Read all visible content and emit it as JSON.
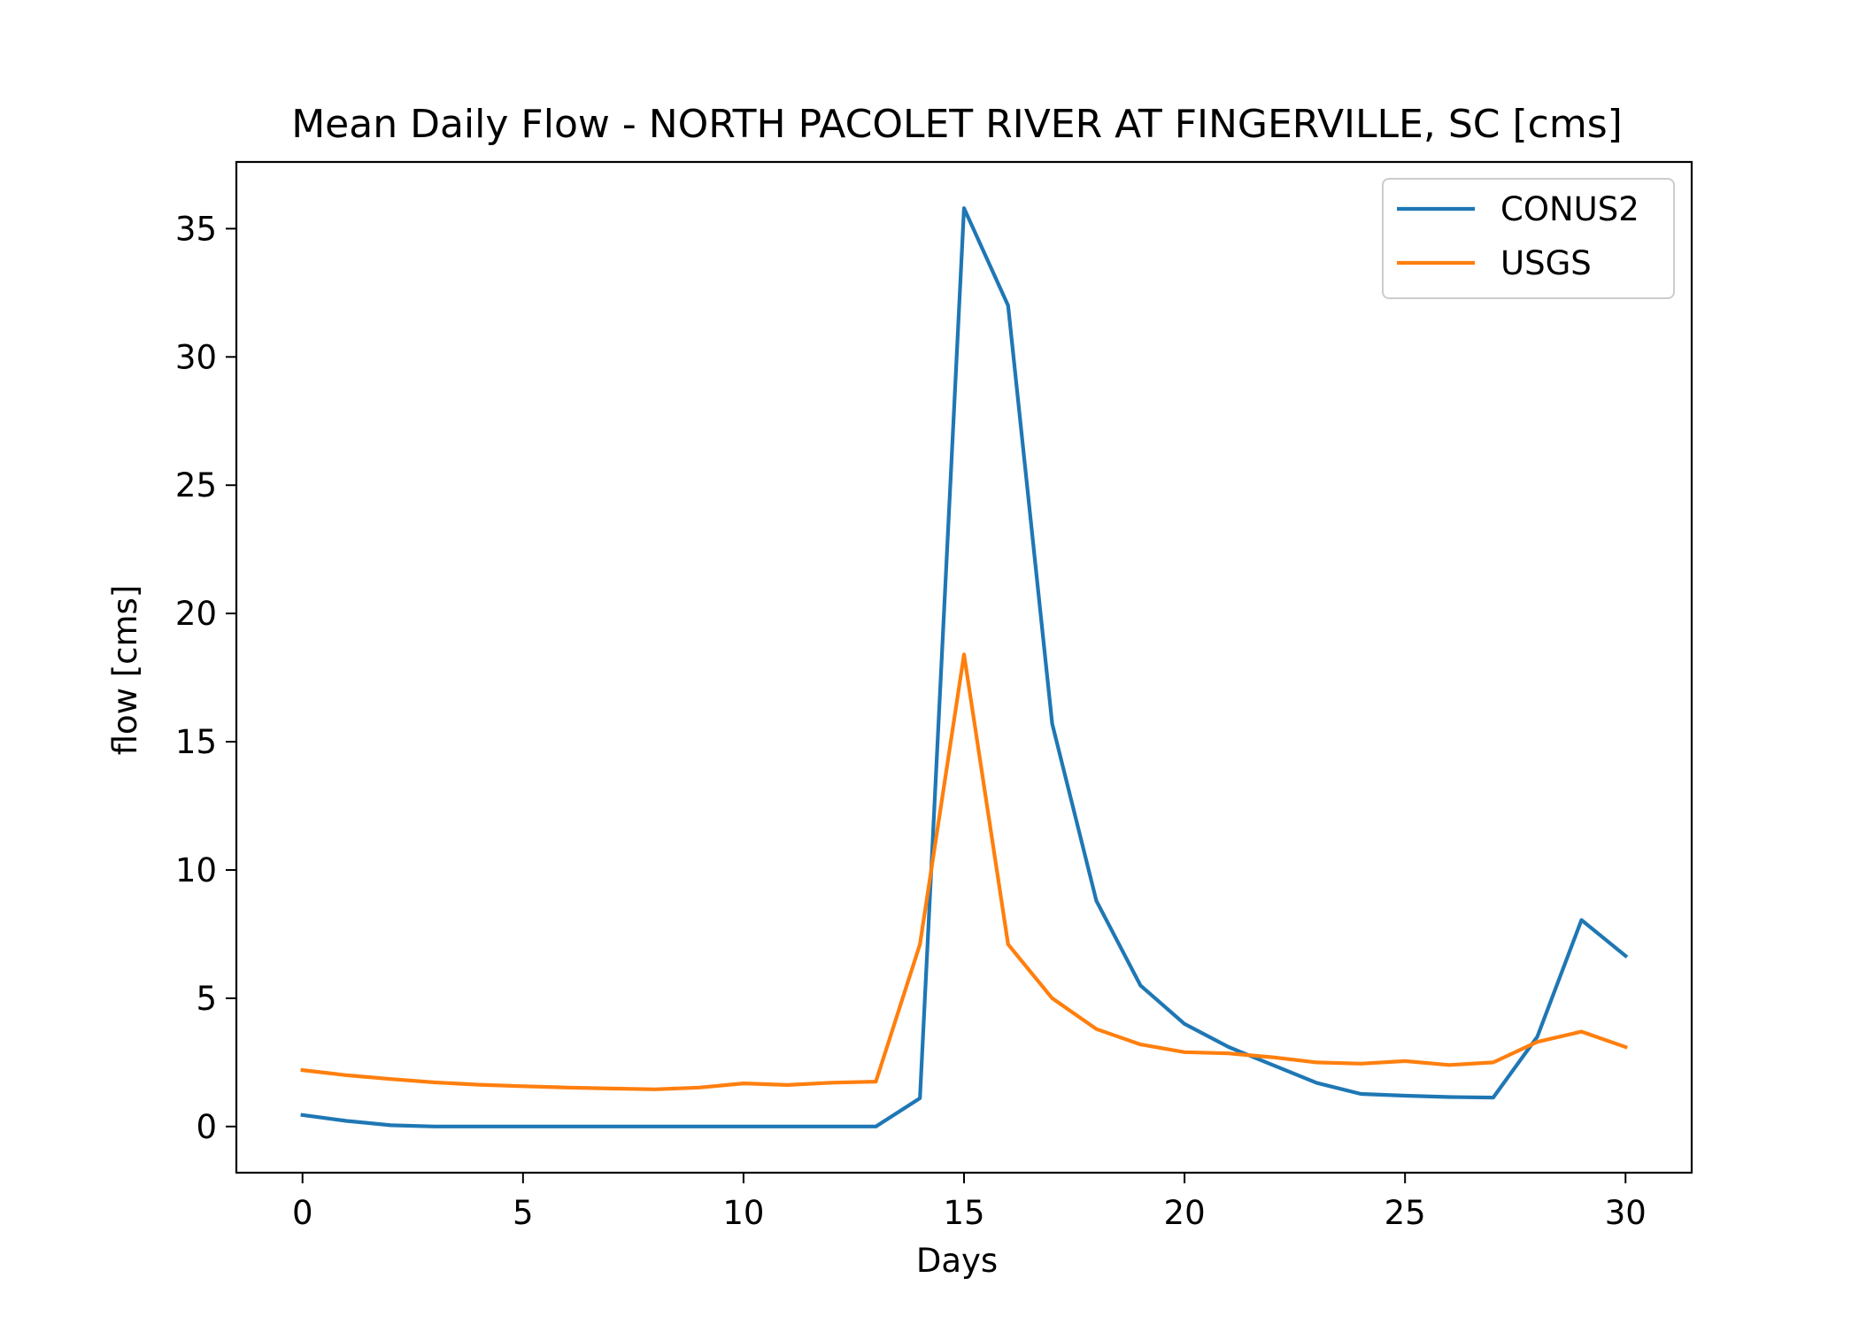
{
  "chart_data": {
    "type": "line",
    "title": "Mean Daily Flow - NORTH PACOLET RIVER AT FINGERVILLE, SC [cms]",
    "xlabel": "Days",
    "ylabel": "flow [cms]",
    "xlim": [
      -1.5,
      31.5
    ],
    "ylim": [
      -1.8,
      37.6
    ],
    "xticks": [
      0,
      5,
      10,
      15,
      20,
      25,
      30
    ],
    "yticks": [
      0,
      5,
      10,
      15,
      20,
      25,
      30,
      35
    ],
    "grid": false,
    "legend_position": "top-right",
    "x": [
      0,
      1,
      2,
      3,
      4,
      5,
      6,
      7,
      8,
      9,
      10,
      11,
      12,
      13,
      14,
      15,
      16,
      17,
      18,
      19,
      20,
      21,
      22,
      23,
      24,
      25,
      26,
      27,
      28,
      29,
      30
    ],
    "series": [
      {
        "name": "CONUS2",
        "color": "#1f77b4",
        "values": [
          0.45,
          0.22,
          0.05,
          0,
          0,
          0,
          0,
          0,
          0,
          0,
          0,
          0,
          0,
          0,
          1.1,
          35.8,
          32.0,
          15.7,
          8.8,
          5.5,
          4.0,
          3.1,
          2.4,
          1.7,
          1.27,
          1.2,
          1.15,
          1.13,
          3.5,
          8.05,
          6.65
        ]
      },
      {
        "name": "USGS",
        "color": "#ff7f0e",
        "values": [
          2.2,
          2.0,
          1.85,
          1.72,
          1.63,
          1.57,
          1.52,
          1.48,
          1.45,
          1.52,
          1.68,
          1.62,
          1.71,
          1.75,
          7.1,
          18.4,
          7.1,
          5.0,
          3.8,
          3.2,
          2.9,
          2.85,
          2.7,
          2.5,
          2.45,
          2.55,
          2.4,
          2.5,
          3.3,
          3.7,
          3.1
        ]
      }
    ]
  }
}
